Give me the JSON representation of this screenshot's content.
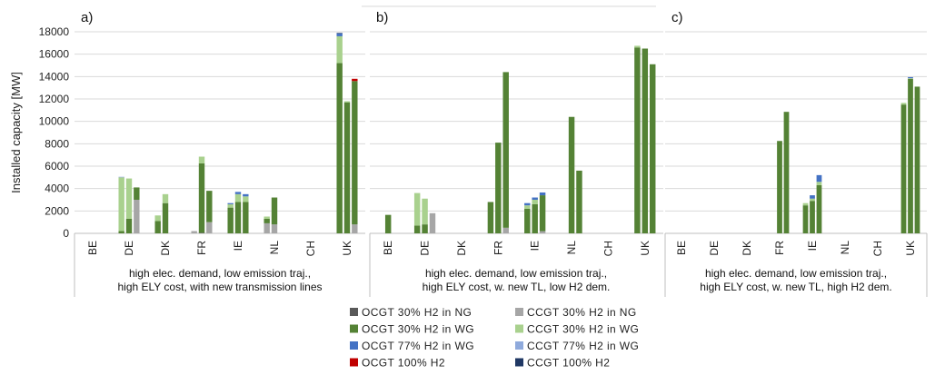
{
  "chart_data": {
    "type": "bar",
    "stacked": true,
    "ylabel": "Installed capacity  [MW]",
    "ylim": [
      0,
      18000
    ],
    "yticks": [
      0,
      2000,
      4000,
      6000,
      8000,
      10000,
      12000,
      14000,
      16000,
      18000
    ],
    "grid": true,
    "legend_position": "bottom",
    "categories": [
      "BE",
      "DE",
      "DK",
      "FR",
      "IE",
      "NL",
      "CH",
      "UK"
    ],
    "bars_per_category": 3,
    "series": [
      {
        "key": "ocgt_30_ng",
        "name": "OCGT 30% H2  in  NG",
        "color": "#595959"
      },
      {
        "key": "ccgt_30_ng",
        "name": "CCGT 30% H2  in  NG",
        "color": "#a6a6a6"
      },
      {
        "key": "ocgt_30_wg",
        "name": "OCGT 30% H2  in  WG",
        "color": "#548235"
      },
      {
        "key": "ccgt_30_wg",
        "name": "CCGT 30% H2  in  WG",
        "color": "#a9d18e"
      },
      {
        "key": "ocgt_77_wg",
        "name": "OCGT 77% H2  in  WG",
        "color": "#4472c4"
      },
      {
        "key": "ccgt_77_wg",
        "name": "CCGT 77% H2  in  WG",
        "color": "#8faadc"
      },
      {
        "key": "ocgt_100",
        "name": "OCGT 100% H2",
        "color": "#c00000"
      },
      {
        "key": "ccgt_100",
        "name": "CCGT 100% H2",
        "color": "#203864"
      }
    ],
    "panels": [
      {
        "label": "a)",
        "subtitle": [
          "high elec. demand, low emission traj.,",
          "high ELY cost, with new transmission lines"
        ],
        "bars": [
          [
            {},
            {},
            {}
          ],
          [
            {
              "ocgt_30_wg": 200,
              "ccgt_30_wg": 4800,
              "ccgt_77_wg": 50
            },
            {
              "ocgt_30_wg": 1300,
              "ccgt_30_wg": 3600
            },
            {
              "ccgt_30_ng": 3000,
              "ocgt_30_wg": 1100
            }
          ],
          [
            {
              "ocgt_30_wg": 1100,
              "ccgt_30_wg": 500
            },
            {
              "ocgt_30_wg": 2700,
              "ccgt_30_wg": 800
            },
            {}
          ],
          [
            {
              "ccgt_30_ng": 200
            },
            {
              "ocgt_30_wg": 6200,
              "ccgt_30_wg": 600,
              "ocgt_30_ng": 50
            },
            {
              "ccgt_30_ng": 1000,
              "ocgt_30_wg": 2800
            }
          ],
          [
            {
              "ocgt_30_wg": 2300,
              "ccgt_30_wg": 300,
              "ocgt_77_wg": 100
            },
            {
              "ocgt_30_wg": 2800,
              "ccgt_30_wg": 700,
              "ocgt_77_wg": 200
            },
            {
              "ocgt_30_wg": 2800,
              "ccgt_30_wg": 500,
              "ocgt_77_wg": 200
            }
          ],
          [
            {
              "ccgt_30_ng": 900,
              "ocgt_30_wg": 400,
              "ccgt_30_wg": 200
            },
            {
              "ccgt_30_ng": 800,
              "ocgt_30_wg": 2400
            },
            {}
          ],
          [
            {},
            {},
            {}
          ],
          [
            {
              "ocgt_30_wg": 15200,
              "ccgt_30_wg": 2400,
              "ocgt_77_wg": 250,
              "ccgt_100": 50
            },
            {
              "ocgt_30_wg": 11700,
              "ccgt_30_wg": 100
            },
            {
              "ccgt_30_ng": 800,
              "ocgt_30_wg": 12800,
              "ocgt_100": 200
            }
          ]
        ]
      },
      {
        "label": "b)",
        "subtitle": [
          "high elec. demand, low emission traj.,",
          "high ELY cost, w. new TL, low H2 dem."
        ],
        "bars": [
          [
            {},
            {
              "ocgt_30_wg": 1650
            },
            {}
          ],
          [
            {
              "ocgt_30_wg": 700,
              "ccgt_30_wg": 2900
            },
            {
              "ocgt_30_wg": 800,
              "ccgt_30_wg": 2300
            },
            {
              "ccgt_30_ng": 1800
            }
          ],
          [
            {},
            {},
            {}
          ],
          [
            {
              "ocgt_30_wg": 2800
            },
            {
              "ocgt_30_wg": 8100
            },
            {
              "ccgt_30_ng": 500,
              "ocgt_30_wg": 13900
            }
          ],
          [
            {
              "ocgt_30_wg": 2200,
              "ccgt_30_wg": 300,
              "ocgt_77_wg": 200
            },
            {
              "ocgt_30_wg": 2600,
              "ccgt_30_wg": 400,
              "ocgt_77_wg": 200
            },
            {
              "ccgt_30_ng": 200,
              "ocgt_30_wg": 3200,
              "ocgt_77_wg": 250
            }
          ],
          [
            {},
            {
              "ocgt_30_wg": 10400
            },
            {
              "ocgt_30_wg": 5600
            }
          ],
          [
            {},
            {},
            {}
          ],
          [
            {
              "ocgt_30_wg": 16600,
              "ccgt_30_wg": 150
            },
            {
              "ocgt_30_wg": 16500
            },
            {
              "ocgt_30_wg": 15100
            }
          ]
        ]
      },
      {
        "label": "c)",
        "subtitle": [
          "high elec. demand, low emission traj.,",
          "high ELY cost, w. new TL, high H2 dem."
        ],
        "bars": [
          [
            {},
            {},
            {}
          ],
          [
            {},
            {},
            {}
          ],
          [
            {},
            {},
            {}
          ],
          [
            {},
            {
              "ocgt_30_wg": 8250
            },
            {
              "ocgt_30_wg": 10850
            }
          ],
          [
            {
              "ocgt_30_wg": 2500,
              "ccgt_30_wg": 200
            },
            {
              "ocgt_30_wg": 2900,
              "ccgt_30_wg": 200,
              "ocgt_77_wg": 300
            },
            {
              "ocgt_30_wg": 4300,
              "ccgt_30_wg": 300,
              "ocgt_77_wg": 600
            }
          ],
          [
            {},
            {},
            {}
          ],
          [
            {},
            {},
            {}
          ],
          [
            {
              "ocgt_30_wg": 11500,
              "ccgt_30_wg": 150
            },
            {
              "ocgt_30_wg": 13800,
              "ccgt_30_wg": 50,
              "ocgt_77_wg": 100
            },
            {
              "ocgt_30_wg": 13100
            }
          ]
        ]
      }
    ]
  }
}
